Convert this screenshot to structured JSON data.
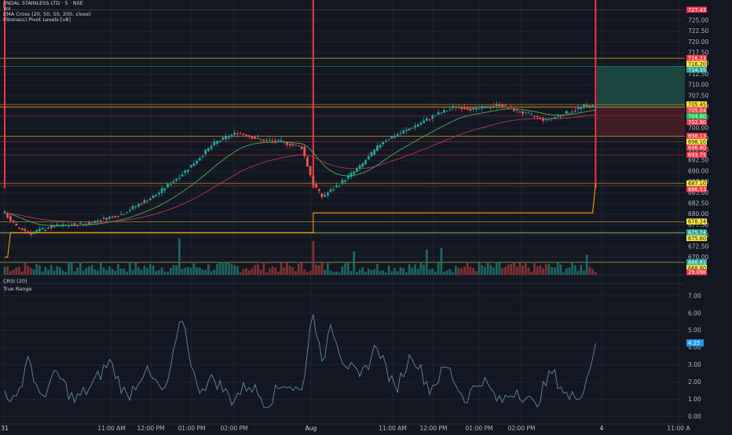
{
  "header": {
    "symbol_line": "JINDAL STAINLESS LTD · 5 · NSE",
    "vol_label": "Vol",
    "ema_label": "EMA Cross (20, 50, 50, 200, close)",
    "fib_label": "Fibonacci Pivot Levels [v8]"
  },
  "lower_panes": {
    "crsi_label": "CRSI (20)",
    "tr_label": "True Range"
  },
  "colors": {
    "background": "#131722",
    "up": "#26a69a",
    "down": "#ef5350",
    "ema_fast": "#4caf50",
    "ema_slow": "#b2385a",
    "pivot_line": "#e0b84a",
    "orange_line": "#ff9800",
    "true_range": "#5d8aa8",
    "long_target": "#1e4d44",
    "long_stop": "#4a1e26"
  },
  "chart_data": [
    {
      "type": "candlestick",
      "title": "JINDAL STAINLESS LTD · 5 · NSE",
      "ylim": [
        667,
        729
      ],
      "x_ticks": [
        "31",
        "11:00 AM",
        "12:00 PM",
        "01:00 PM",
        "02:00 PM",
        "Aug",
        "11:00 AM",
        "12:00 PM",
        "01:00 PM",
        "02:00 PM",
        "4",
        "11:00 A"
      ],
      "y_ticks": [
        670,
        672.5,
        675,
        677.5,
        680,
        682.5,
        685,
        687.5,
        690,
        692.5,
        695,
        697.5,
        700,
        702.5,
        705,
        707.5,
        710,
        712.5,
        715,
        717.5,
        720,
        722.5,
        725
      ],
      "key_points": [
        {
          "i": 0,
          "p": 680.2
        },
        {
          "i": 4,
          "p": 677.0
        },
        {
          "i": 9,
          "p": 675.6
        },
        {
          "i": 16,
          "p": 677.1
        },
        {
          "i": 28,
          "p": 677.8
        },
        {
          "i": 40,
          "p": 680.0
        },
        {
          "i": 52,
          "p": 684.5
        },
        {
          "i": 62,
          "p": 690.0
        },
        {
          "i": 72,
          "p": 696.5
        },
        {
          "i": 80,
          "p": 699.0
        },
        {
          "i": 88,
          "p": 697.2
        },
        {
          "i": 95,
          "p": 696.8
        },
        {
          "i": 102,
          "p": 695.5
        },
        {
          "i": 106,
          "p": 687.0
        },
        {
          "i": 109,
          "p": 684.0
        },
        {
          "i": 114,
          "p": 686.5
        },
        {
          "i": 122,
          "p": 691.0
        },
        {
          "i": 130,
          "p": 697.0
        },
        {
          "i": 138,
          "p": 699.5
        },
        {
          "i": 148,
          "p": 703.0
        },
        {
          "i": 155,
          "p": 705.0
        },
        {
          "i": 162,
          "p": 704.3
        },
        {
          "i": 170,
          "p": 705.5
        },
        {
          "i": 178,
          "p": 703.5
        },
        {
          "i": 186,
          "p": 701.8
        },
        {
          "i": 194,
          "p": 703.8
        },
        {
          "i": 200,
          "p": 705.2
        },
        {
          "i": 203,
          "p": 704.8
        }
      ],
      "candle_count": 204,
      "session_breaks": [
        106
      ],
      "pivot_levels": [
        {
          "price": 727.43,
          "label": "727.43",
          "color": "#f23645"
        },
        {
          "price": 716.23,
          "label": "716.23",
          "color": "#f23645"
        },
        {
          "price": 716.2,
          "label": "716.20",
          "color": "#ffeb3b"
        },
        {
          "price": 714.35,
          "label": "714.35",
          "color": "#26a69a"
        },
        {
          "price": 705.45,
          "label": "705.45",
          "color": "#ffeb3b"
        },
        {
          "price": 705.04,
          "label": "705.04",
          "color": "#f23645"
        },
        {
          "price": 704.8,
          "label": "704.80",
          "color": "#00c853"
        },
        {
          "price": 702.9,
          "label": "702.90",
          "color": "#f23645"
        },
        {
          "price": 698.13,
          "label": "698.13",
          "color": "#f23645"
        },
        {
          "price": 698.1,
          "label": "698.10",
          "color": "#ffeb3b"
        },
        {
          "price": 696.8,
          "label": "696.80",
          "color": "#f23645"
        },
        {
          "price": 693.75,
          "label": "693.75",
          "color": "#f23645"
        },
        {
          "price": 687.1,
          "label": "687.10",
          "color": "#ffeb3b"
        },
        {
          "price": 686.53,
          "label": "686.53",
          "color": "#f23645"
        },
        {
          "price": 678.24,
          "label": "678.24",
          "color": "#ffeb3b"
        },
        {
          "price": 675.74,
          "label": "675.74",
          "color": "#26a69a"
        },
        {
          "price": 675.6,
          "label": "675.60",
          "color": "#ffeb3b"
        },
        {
          "price": 668.81,
          "label": "668.81",
          "color": "#26a69a"
        },
        {
          "price": 668.8,
          "label": "668.80",
          "color": "#ffeb3b"
        }
      ],
      "volume_badge": "29.09K",
      "position": {
        "entry": 704.8,
        "target": 714.35,
        "stop": 698.1
      }
    },
    {
      "type": "line",
      "title": "True Range",
      "ylim": [
        -0.2,
        7.4
      ],
      "y_ticks": [
        0,
        1,
        2,
        3,
        4,
        5,
        6,
        7
      ],
      "current_value": 4.25,
      "current_label": "4.25",
      "key_points": [
        {
          "i": 0,
          "v": 1.5
        },
        {
          "i": 4,
          "v": 0.8
        },
        {
          "i": 8,
          "v": 3.6
        },
        {
          "i": 12,
          "v": 1.0
        },
        {
          "i": 18,
          "v": 2.5
        },
        {
          "i": 24,
          "v": 0.9
        },
        {
          "i": 30,
          "v": 1.8
        },
        {
          "i": 36,
          "v": 3.2
        },
        {
          "i": 42,
          "v": 1.1
        },
        {
          "i": 48,
          "v": 2.7
        },
        {
          "i": 55,
          "v": 1.3
        },
        {
          "i": 61,
          "v": 5.8
        },
        {
          "i": 66,
          "v": 1.6
        },
        {
          "i": 72,
          "v": 2.2
        },
        {
          "i": 78,
          "v": 1.0
        },
        {
          "i": 84,
          "v": 1.9
        },
        {
          "i": 90,
          "v": 0.8
        },
        {
          "i": 96,
          "v": 2.0
        },
        {
          "i": 102,
          "v": 1.4
        },
        {
          "i": 106,
          "v": 6.3
        },
        {
          "i": 109,
          "v": 2.8
        },
        {
          "i": 112,
          "v": 5.6
        },
        {
          "i": 116,
          "v": 3.4
        },
        {
          "i": 122,
          "v": 2.1
        },
        {
          "i": 128,
          "v": 4.2
        },
        {
          "i": 134,
          "v": 1.5
        },
        {
          "i": 140,
          "v": 3.7
        },
        {
          "i": 146,
          "v": 1.6
        },
        {
          "i": 152,
          "v": 2.9
        },
        {
          "i": 158,
          "v": 1.0
        },
        {
          "i": 164,
          "v": 2.2
        },
        {
          "i": 170,
          "v": 0.8
        },
        {
          "i": 176,
          "v": 1.6
        },
        {
          "i": 182,
          "v": 0.6
        },
        {
          "i": 188,
          "v": 2.6
        },
        {
          "i": 194,
          "v": 1.0
        },
        {
          "i": 199,
          "v": 1.6
        },
        {
          "i": 203,
          "v": 4.25
        }
      ]
    }
  ]
}
